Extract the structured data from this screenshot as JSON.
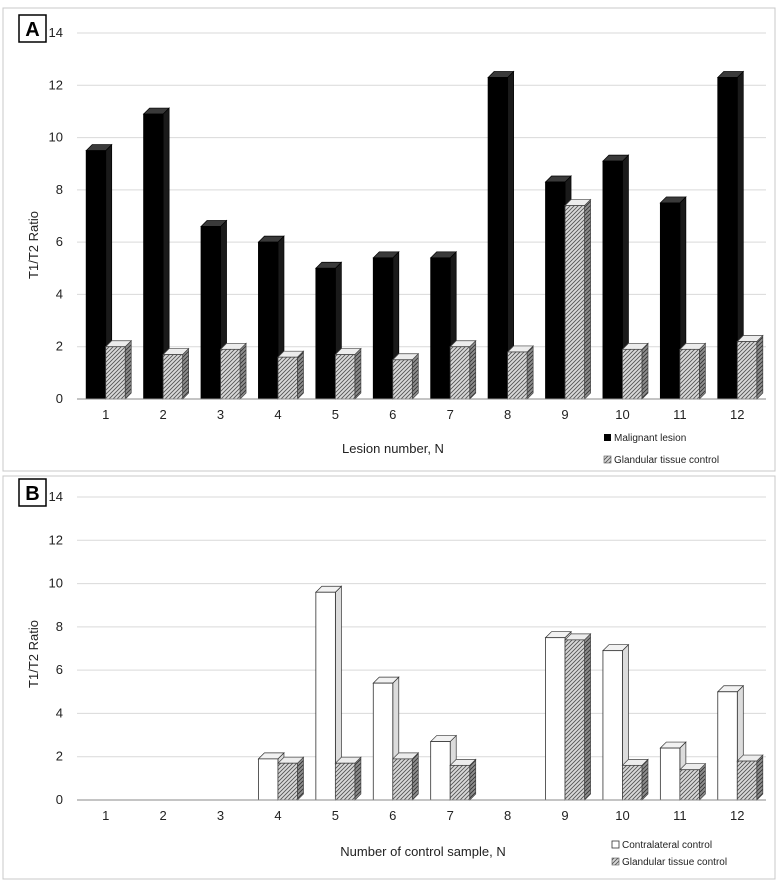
{
  "chart_data": [
    {
      "type": "bar",
      "panel_label": "A",
      "categories": [
        "1",
        "2",
        "3",
        "4",
        "5",
        "6",
        "7",
        "8",
        "9",
        "10",
        "11",
        "12"
      ],
      "series": [
        {
          "name": "Malignant lesion",
          "style": "solid",
          "color": "#000000",
          "values": [
            9.5,
            10.9,
            6.6,
            6.0,
            5.0,
            5.4,
            5.4,
            12.3,
            8.3,
            9.1,
            7.5,
            12.3
          ]
        },
        {
          "name": "Glandular tissue control",
          "style": "hatched",
          "color": "#bdbdbd",
          "values": [
            2.0,
            1.7,
            1.9,
            1.6,
            1.7,
            1.5,
            2.0,
            1.8,
            7.4,
            1.9,
            1.9,
            2.2
          ]
        }
      ],
      "xlabel": "Lesion number, N",
      "ylabel": "T1/T2 Ratio",
      "yticks": [
        "0",
        "2",
        "4",
        "6",
        "8",
        "10",
        "12",
        "14"
      ],
      "ylim": [
        0,
        14
      ],
      "grid": true,
      "legend_position": "bottom-right"
    },
    {
      "type": "bar",
      "panel_label": "B",
      "categories": [
        "1",
        "2",
        "3",
        "4",
        "5",
        "6",
        "7",
        "8",
        "9",
        "10",
        "11",
        "12"
      ],
      "series": [
        {
          "name": "Contralateral control",
          "style": "open",
          "color": "#ffffff",
          "values": [
            0,
            0,
            0,
            1.9,
            9.6,
            5.4,
            2.7,
            0,
            7.5,
            6.9,
            2.4,
            5.0
          ]
        },
        {
          "name": "Glandular tissue control",
          "style": "hatched",
          "color": "#bdbdbd",
          "values": [
            0,
            0,
            0,
            1.7,
            1.7,
            1.9,
            1.6,
            0,
            7.4,
            1.6,
            1.4,
            1.8
          ]
        }
      ],
      "xlabel": "Number of control sample, N",
      "ylabel": "T1/T2 Ratio",
      "yticks": [
        "0",
        "2",
        "4",
        "6",
        "8",
        "10",
        "12",
        "14"
      ],
      "ylim": [
        0,
        14
      ],
      "grid": true,
      "legend_position": "bottom-right"
    }
  ]
}
